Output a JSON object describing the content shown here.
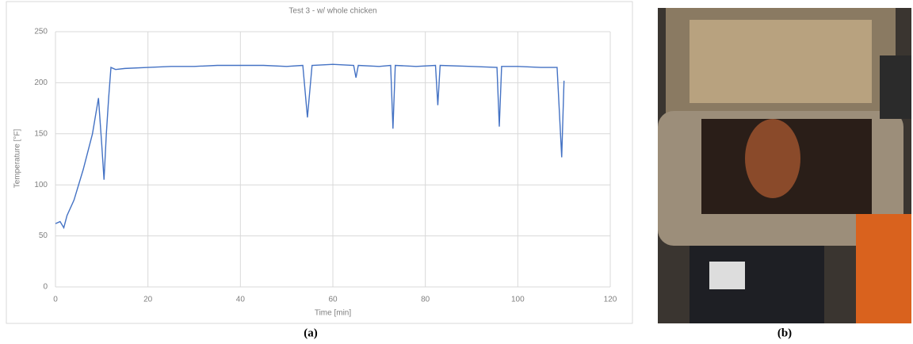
{
  "chart_data": {
    "type": "line",
    "title": "Test 3 - w/ whole chicken",
    "x_label": "Time [min]",
    "y_label": "Temperature [°F]",
    "x": [
      0,
      1,
      1.8,
      2.5,
      4,
      6,
      8,
      9.3,
      10,
      10.5,
      11,
      11.5,
      12,
      13,
      15,
      20,
      25,
      30,
      35,
      40,
      45,
      50,
      53.5,
      54.5,
      55.5,
      60,
      64.5,
      65,
      65.5,
      70,
      72.5,
      73,
      73.5,
      78,
      82.2,
      82.7,
      83.2,
      90,
      95.5,
      96,
      96.5,
      100,
      105,
      108.5,
      109.5,
      110
    ],
    "series": [
      {
        "color": "#4472c4",
        "values": [
          62,
          64,
          58,
          70,
          85,
          115,
          150,
          185,
          140,
          105,
          150,
          185,
          215,
          213,
          214,
          215,
          216,
          216,
          217,
          217,
          217,
          216,
          217,
          166,
          217,
          218,
          217,
          205,
          217,
          216,
          217,
          155,
          217,
          216,
          217,
          178,
          217,
          216,
          215,
          157,
          216,
          216,
          215,
          215,
          127,
          202
        ]
      }
    ],
    "xlim": [
      0,
      120
    ],
    "xticks": [
      0,
      20,
      40,
      60,
      80,
      100,
      120
    ],
    "ylim": [
      0,
      250
    ],
    "yticks": [
      0,
      50,
      100,
      150,
      200,
      250
    ],
    "grid": true
  },
  "figure": {
    "captions": [
      "(a)",
      "(b)"
    ]
  }
}
